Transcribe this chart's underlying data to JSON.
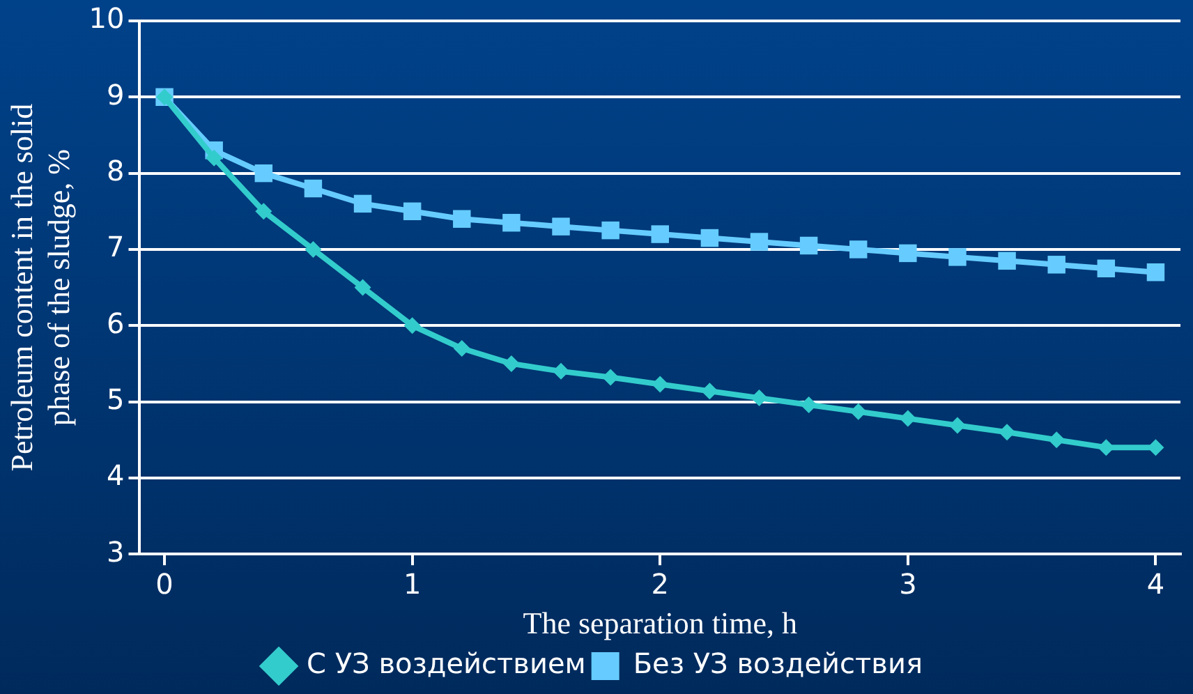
{
  "chart_data": {
    "type": "line",
    "xlabel": "The separation time, h",
    "ylabel": "Petroleum content in the solid phase of the sludge, %",
    "x": [
      0,
      0.2,
      0.4,
      0.6,
      0.8,
      1.0,
      1.2,
      1.4,
      1.6,
      1.8,
      2.0,
      2.2,
      2.4,
      2.6,
      2.8,
      3.0,
      3.2,
      3.4,
      3.6,
      3.8,
      4.0
    ],
    "series": [
      {
        "name": "С УЗ воздействием",
        "color": "#33cccc",
        "marker": "diamond",
        "values": [
          9,
          8.2,
          7.5,
          7.0,
          6.5,
          6.0,
          5.7,
          5.5,
          5.4,
          5.32,
          5.23,
          5.14,
          5.05,
          4.96,
          4.87,
          4.78,
          4.69,
          4.6,
          4.5,
          4.4,
          4.4
        ]
      },
      {
        "name": "Без УЗ воздействия",
        "color": "#66ccff",
        "marker": "square",
        "values": [
          9,
          8.3,
          8.0,
          7.8,
          7.6,
          7.5,
          7.4,
          7.35,
          7.3,
          7.25,
          7.2,
          7.15,
          7.1,
          7.05,
          7.0,
          6.95,
          6.9,
          6.85,
          6.8,
          6.75,
          6.7
        ]
      }
    ],
    "xlim": [
      -0.1,
      4.1
    ],
    "xticks": [
      0,
      1,
      2,
      3,
      4
    ],
    "ylim": [
      3,
      10
    ],
    "yticks": [
      3,
      4,
      5,
      6,
      7,
      8,
      9,
      10
    ],
    "grid": "y",
    "legend": "bottom",
    "line_style": "solid"
  }
}
